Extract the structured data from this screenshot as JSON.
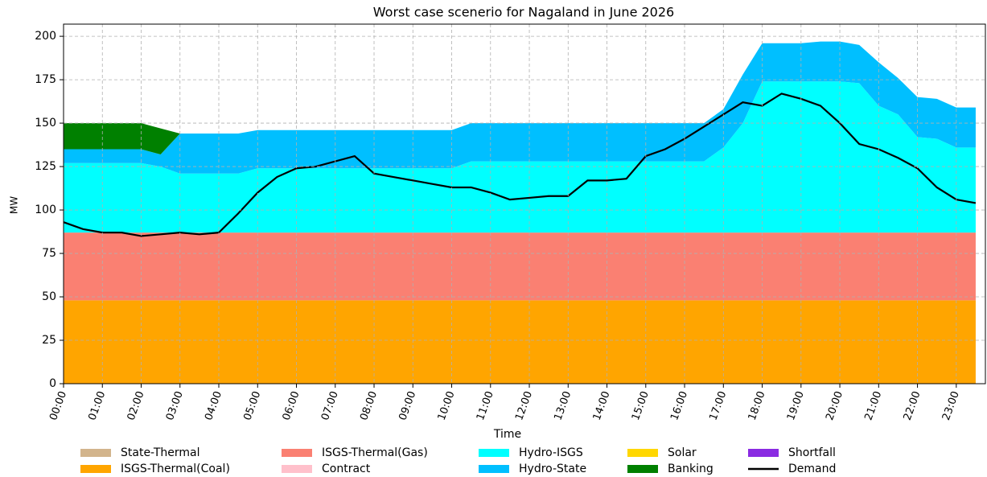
{
  "chart_data": {
    "type": "stacked_area",
    "title": "Worst case scenerio for Nagaland in June 2026",
    "xlabel": "Time",
    "ylabel": "MW",
    "x": [
      0,
      0.5,
      1,
      1.5,
      2,
      2.5,
      3,
      3.5,
      4,
      4.5,
      5,
      5.5,
      6,
      6.5,
      7,
      7.5,
      8,
      8.5,
      9,
      9.5,
      10,
      10.5,
      11,
      11.5,
      12,
      12.5,
      13,
      13.5,
      14,
      14.5,
      15,
      15.5,
      16,
      16.5,
      17,
      17.5,
      18,
      18.5,
      19,
      19.5,
      20,
      20.5,
      21,
      21.5,
      22,
      22.5,
      23,
      23.5
    ],
    "xlim": [
      0,
      23.75
    ],
    "xticks": [
      {
        "value": 0,
        "label": "00:00"
      },
      {
        "value": 1,
        "label": "01:00"
      },
      {
        "value": 2,
        "label": "02:00"
      },
      {
        "value": 3,
        "label": "03:00"
      },
      {
        "value": 4,
        "label": "04:00"
      },
      {
        "value": 5,
        "label": "05:00"
      },
      {
        "value": 6,
        "label": "06:00"
      },
      {
        "value": 7,
        "label": "07:00"
      },
      {
        "value": 8,
        "label": "08:00"
      },
      {
        "value": 9,
        "label": "09:00"
      },
      {
        "value": 10,
        "label": "10:00"
      },
      {
        "value": 11,
        "label": "11:00"
      },
      {
        "value": 12,
        "label": "12:00"
      },
      {
        "value": 13,
        "label": "13:00"
      },
      {
        "value": 14,
        "label": "14:00"
      },
      {
        "value": 15,
        "label": "15:00"
      },
      {
        "value": 16,
        "label": "16:00"
      },
      {
        "value": 17,
        "label": "17:00"
      },
      {
        "value": 18,
        "label": "18:00"
      },
      {
        "value": 19,
        "label": "19:00"
      },
      {
        "value": 20,
        "label": "20:00"
      },
      {
        "value": 21,
        "label": "21:00"
      },
      {
        "value": 22,
        "label": "22:00"
      },
      {
        "value": 23,
        "label": "23:00"
      }
    ],
    "ylim": [
      0,
      207
    ],
    "yticks": [
      0,
      25,
      50,
      75,
      100,
      125,
      150,
      175,
      200
    ],
    "grid": true,
    "legend": "bottom",
    "series": [
      {
        "name": "State-Thermal",
        "color": "#d2b48c",
        "values": [
          0,
          0,
          0,
          0,
          0,
          0,
          0,
          0,
          0,
          0,
          0,
          0,
          0,
          0,
          0,
          0,
          0,
          0,
          0,
          0,
          0,
          0,
          0,
          0,
          0,
          0,
          0,
          0,
          0,
          0,
          0,
          0,
          0,
          0,
          0,
          0,
          0,
          0,
          0,
          0,
          0,
          0,
          0,
          0,
          0,
          0,
          0,
          0
        ]
      },
      {
        "name": "ISGS-Thermal(Coal)",
        "color": "#ffa500",
        "values": [
          48,
          48,
          48,
          48,
          48,
          48,
          48,
          48,
          48,
          48,
          48,
          48,
          48,
          48,
          48,
          48,
          48,
          48,
          48,
          48,
          48,
          48,
          48,
          48,
          48,
          48,
          48,
          48,
          48,
          48,
          48,
          48,
          48,
          48,
          48,
          48,
          48,
          48,
          48,
          48,
          48,
          48,
          48,
          48,
          48,
          48,
          48,
          48
        ]
      },
      {
        "name": "ISGS-Thermal(Gas)",
        "color": "#fa8072",
        "values": [
          39,
          39,
          39,
          39,
          39,
          39,
          39,
          39,
          39,
          39,
          39,
          39,
          39,
          39,
          39,
          39,
          39,
          39,
          39,
          39,
          39,
          39,
          39,
          39,
          39,
          39,
          39,
          39,
          39,
          39,
          39,
          39,
          39,
          39,
          39,
          39,
          39,
          39,
          39,
          39,
          39,
          39,
          39,
          39,
          39,
          39,
          39,
          39
        ]
      },
      {
        "name": "Contract",
        "color": "#ffc0cb",
        "values": [
          0,
          0,
          0,
          0,
          0,
          0,
          0,
          0,
          0,
          0,
          0,
          0,
          0,
          0,
          0,
          0,
          0,
          0,
          0,
          0,
          0,
          0,
          0,
          0,
          0,
          0,
          0,
          0,
          0,
          0,
          0,
          0,
          0,
          0,
          0,
          0,
          0,
          0,
          0,
          0,
          0,
          0,
          0,
          0,
          0,
          0,
          0,
          0
        ]
      },
      {
        "name": "Hydro-ISGS",
        "color": "#00ffff",
        "values": [
          40,
          40,
          40,
          40,
          40,
          38,
          34,
          34,
          34,
          34,
          37,
          37,
          37,
          37,
          37,
          37,
          37,
          37,
          37,
          37,
          37,
          41,
          41,
          41,
          41,
          41,
          41,
          41,
          41,
          41,
          41,
          41,
          41,
          41,
          49,
          63,
          87,
          87,
          87,
          87,
          87,
          86,
          73,
          68,
          55,
          54,
          49,
          49
        ]
      },
      {
        "name": "Hydro-State",
        "color": "#00bfff",
        "values": [
          8,
          8,
          8,
          8,
          8,
          7,
          23,
          23,
          23,
          23,
          22,
          22,
          22,
          22,
          22,
          22,
          22,
          22,
          22,
          22,
          22,
          22,
          22,
          22,
          22,
          22,
          22,
          22,
          22,
          22,
          22,
          22,
          22,
          22,
          22,
          28,
          22,
          22,
          22,
          23,
          23,
          22,
          25,
          21,
          23,
          23,
          23,
          23
        ]
      },
      {
        "name": "Solar",
        "color": "#ffd700",
        "values": [
          0,
          0,
          0,
          0,
          0,
          0,
          0,
          0,
          0,
          0,
          0,
          0,
          0,
          0,
          0,
          0,
          0,
          0,
          0,
          0,
          0,
          0,
          0,
          0,
          0,
          0,
          0,
          0,
          0,
          0,
          0,
          0,
          0,
          0,
          0,
          0,
          0,
          0,
          0,
          0,
          0,
          0,
          0,
          0,
          0,
          0,
          0,
          0
        ]
      },
      {
        "name": "Banking",
        "color": "#008000",
        "values": [
          15,
          15,
          15,
          15,
          15,
          15,
          0,
          0,
          0,
          0,
          0,
          0,
          0,
          0,
          0,
          0,
          0,
          0,
          0,
          0,
          0,
          0,
          0,
          0,
          0,
          0,
          0,
          0,
          0,
          0,
          0,
          0,
          0,
          0,
          0,
          0,
          0,
          0,
          0,
          0,
          0,
          0,
          0,
          0,
          0,
          0,
          0,
          0
        ]
      },
      {
        "name": "Shortfall",
        "color": "#8a2be2",
        "values": [
          0,
          0,
          0,
          0,
          0,
          0,
          0,
          0,
          0,
          0,
          0,
          0,
          0,
          0,
          0,
          0,
          0,
          0,
          0,
          0,
          0,
          0,
          0,
          0,
          0,
          0,
          0,
          0,
          0,
          0,
          0,
          0,
          0,
          0,
          0,
          0,
          0,
          0,
          0,
          0,
          0,
          0,
          0,
          0,
          0,
          0,
          0,
          0
        ]
      }
    ],
    "line": {
      "name": "Demand",
      "color": "#000000",
      "values": [
        93,
        89,
        87,
        87,
        85,
        86,
        87,
        86,
        87,
        98,
        110,
        119,
        124,
        125,
        128,
        131,
        121,
        119,
        117,
        115,
        113,
        113,
        110,
        106,
        107,
        108,
        108,
        117,
        117,
        118,
        131,
        135,
        141,
        148,
        155,
        162,
        160,
        167,
        164,
        160,
        150,
        138,
        135,
        130,
        124,
        113,
        106,
        104
      ]
    }
  }
}
